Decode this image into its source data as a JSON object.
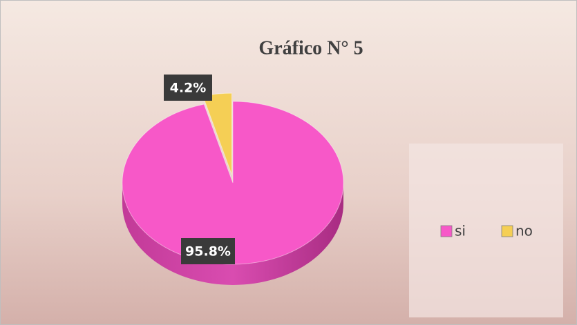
{
  "chart_data": {
    "type": "pie",
    "title": "Gráfico N°  5",
    "categories": [
      "si",
      "no"
    ],
    "values": [
      95.8,
      4.2
    ],
    "value_labels": [
      "95.8%",
      "4.2%"
    ],
    "colors": [
      "#f758c8",
      "#f5cf55"
    ],
    "explode": [
      false,
      true
    ],
    "legend": "right"
  }
}
